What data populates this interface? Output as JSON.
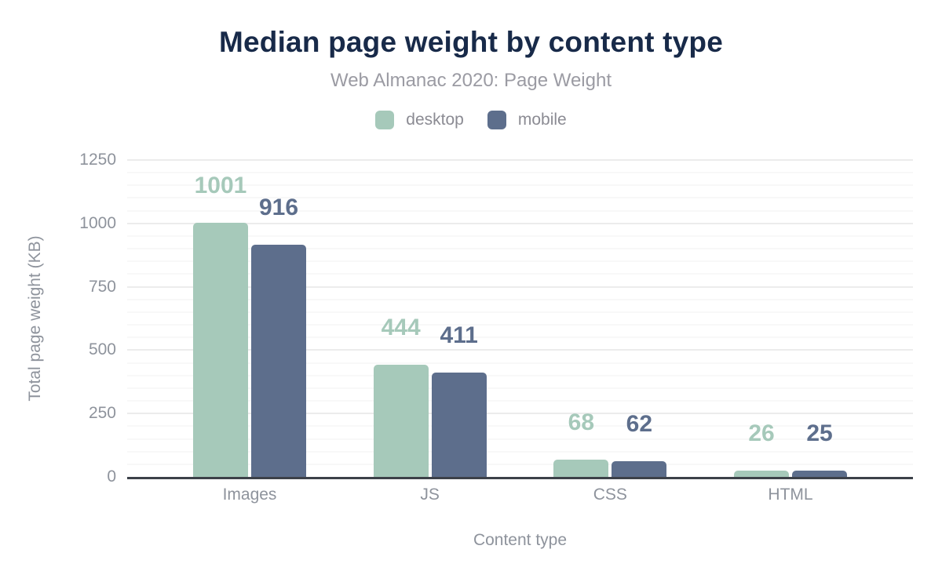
{
  "header": {
    "title": "Median page weight by content type",
    "subtitle": "Web Almanac 2020: Page Weight"
  },
  "legend": [
    {
      "label": "desktop",
      "color": "#a6c9ba"
    },
    {
      "label": "mobile",
      "color": "#5d6e8c"
    }
  ],
  "colors": {
    "title_text": "#182a49",
    "subtitle_text": "#9b9ba3",
    "axis_text": "#8e939c",
    "axis_line": "#3c4149",
    "gridline_major": "#ececec",
    "gridline_minor": "#f8f8f8",
    "desktop_series": "#a6c9ba",
    "mobile_series": "#5d6e8c",
    "background": "#ffffff"
  },
  "chart_data": {
    "type": "bar",
    "title": "Median page weight by content type",
    "subtitle": "Web Almanac 2020: Page Weight",
    "categories": [
      "Images",
      "JS",
      "CSS",
      "HTML"
    ],
    "series": [
      {
        "name": "desktop",
        "color": "#a6c9ba",
        "values": [
          1001,
          444,
          68,
          26
        ]
      },
      {
        "name": "mobile",
        "color": "#5d6e8c",
        "values": [
          916,
          411,
          62,
          25
        ]
      }
    ],
    "xlabel": "Content type",
    "ylabel": "Total page weight (KB)",
    "ylim": [
      0,
      1250
    ],
    "yticks": [
      0,
      250,
      500,
      750,
      1000,
      1250
    ],
    "grid": true,
    "grid_step": 50,
    "major_step": 250,
    "legend_position": "top",
    "value_labels": true,
    "units": "KB"
  }
}
